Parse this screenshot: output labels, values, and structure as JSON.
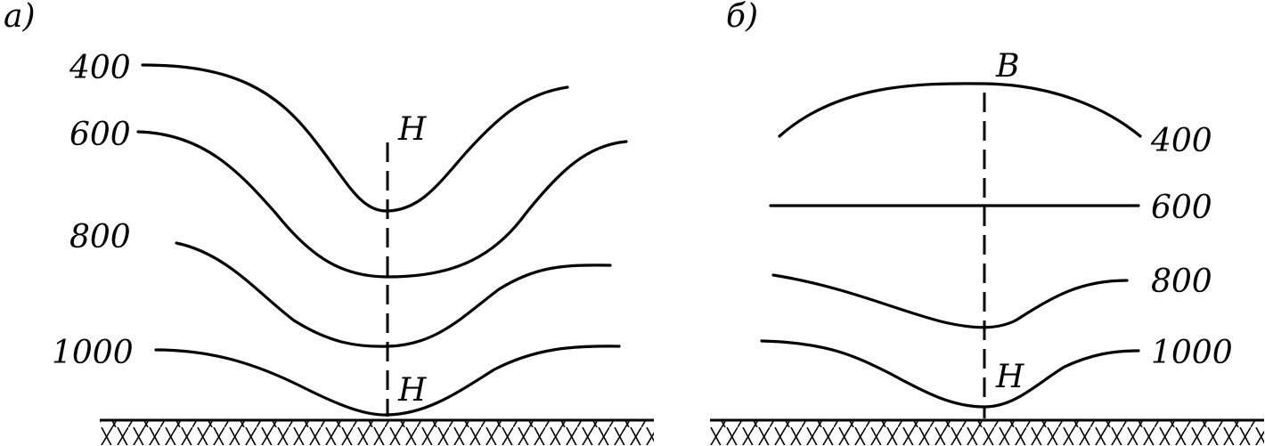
{
  "panel_a": {
    "tag": "а)",
    "levels": [
      {
        "value": "400"
      },
      {
        "value": "600"
      },
      {
        "value": "800"
      },
      {
        "value": "1000"
      }
    ],
    "top_label": "Н",
    "bottom_label": "Н"
  },
  "panel_b": {
    "tag": "б)",
    "levels": [
      {
        "value": "400"
      },
      {
        "value": "600"
      },
      {
        "value": "800"
      },
      {
        "value": "1000"
      }
    ],
    "top_label": "В",
    "bottom_label": "Н"
  }
}
